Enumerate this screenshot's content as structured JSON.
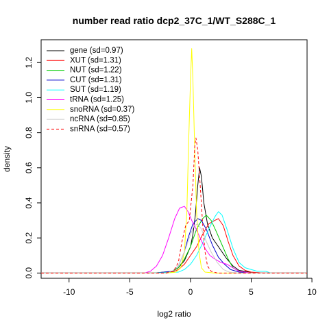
{
  "chart_data": {
    "type": "line",
    "title": "number read ratio dcp2_37C_1/WT_S288C_1",
    "xlabel": "log2 ratio",
    "ylabel": "density",
    "xlim": [
      -12.3,
      9.6
    ],
    "ylim": [
      -0.03,
      1.33
    ],
    "xticks": [
      -10,
      -5,
      0,
      5,
      10
    ],
    "yticks": [
      0.0,
      0.2,
      0.4,
      0.6,
      0.8,
      1.0,
      1.2
    ],
    "grid": false,
    "legend_position": "top-left",
    "series": [
      {
        "name": "gene (sd=0.97)",
        "color": "#000000",
        "dash": false,
        "points": [
          [
            -12.3,
            0
          ],
          [
            -3,
            0
          ],
          [
            -2,
            0.003
          ],
          [
            -1.5,
            0.01
          ],
          [
            -1,
            0.03
          ],
          [
            -0.5,
            0.07
          ],
          [
            0,
            0.15
          ],
          [
            0.2,
            0.22
          ],
          [
            0.4,
            0.33
          ],
          [
            0.6,
            0.5
          ],
          [
            0.75,
            0.6
          ],
          [
            0.9,
            0.55
          ],
          [
            1.1,
            0.4
          ],
          [
            1.4,
            0.28
          ],
          [
            1.8,
            0.2
          ],
          [
            2.2,
            0.16
          ],
          [
            2.6,
            0.12
          ],
          [
            3,
            0.08
          ],
          [
            3.5,
            0.04
          ],
          [
            4,
            0.015
          ],
          [
            5,
            0.004
          ],
          [
            6,
            0
          ],
          [
            9.6,
            0
          ]
        ]
      },
      {
        "name": "XUT (sd=1.31)",
        "color": "#ff0000",
        "dash": false,
        "points": [
          [
            -12.3,
            0
          ],
          [
            -3,
            0
          ],
          [
            -1.5,
            0.005
          ],
          [
            -1,
            0.02
          ],
          [
            -0.5,
            0.05
          ],
          [
            0,
            0.1
          ],
          [
            0.5,
            0.15
          ],
          [
            1,
            0.22
          ],
          [
            1.5,
            0.28
          ],
          [
            2,
            0.3
          ],
          [
            2.3,
            0.31
          ],
          [
            2.7,
            0.27
          ],
          [
            3.1,
            0.18
          ],
          [
            3.5,
            0.1
          ],
          [
            4,
            0.04
          ],
          [
            4.5,
            0.015
          ],
          [
            5,
            0.005
          ],
          [
            6,
            0
          ],
          [
            9.6,
            0
          ]
        ]
      },
      {
        "name": "NUT (sd=1.22)",
        "color": "#00cc00",
        "dash": false,
        "points": [
          [
            -12.3,
            0
          ],
          [
            -3,
            0
          ],
          [
            -1.5,
            0.01
          ],
          [
            -1,
            0.03
          ],
          [
            -0.5,
            0.08
          ],
          [
            0,
            0.15
          ],
          [
            0.5,
            0.25
          ],
          [
            1,
            0.31
          ],
          [
            1.3,
            0.33
          ],
          [
            1.7,
            0.3
          ],
          [
            2.1,
            0.24
          ],
          [
            2.6,
            0.16
          ],
          [
            3.1,
            0.08
          ],
          [
            3.5,
            0.03
          ],
          [
            4,
            0.01
          ],
          [
            5,
            0
          ],
          [
            9.6,
            0
          ]
        ]
      },
      {
        "name": "CUT (sd=1.31)",
        "color": "#0000cc",
        "dash": false,
        "points": [
          [
            -12.3,
            0
          ],
          [
            -3,
            0
          ],
          [
            -1.5,
            0.01
          ],
          [
            -1,
            0.04
          ],
          [
            -0.5,
            0.12
          ],
          [
            -0.2,
            0.2
          ],
          [
            0.2,
            0.28
          ],
          [
            0.6,
            0.31
          ],
          [
            0.9,
            0.3
          ],
          [
            1.3,
            0.25
          ],
          [
            1.8,
            0.16
          ],
          [
            2.3,
            0.09
          ],
          [
            2.8,
            0.05
          ],
          [
            3.3,
            0.02
          ],
          [
            4,
            0.005
          ],
          [
            5,
            0
          ],
          [
            9.6,
            0
          ]
        ]
      },
      {
        "name": "SUT (sd=1.19)",
        "color": "#00ffff",
        "dash": false,
        "points": [
          [
            -12.3,
            0
          ],
          [
            -3,
            0
          ],
          [
            -1,
            0.005
          ],
          [
            -0.5,
            0.02
          ],
          [
            0,
            0.05
          ],
          [
            0.5,
            0.1
          ],
          [
            1,
            0.17
          ],
          [
            1.5,
            0.25
          ],
          [
            2,
            0.32
          ],
          [
            2.3,
            0.35
          ],
          [
            2.6,
            0.33
          ],
          [
            3,
            0.25
          ],
          [
            3.5,
            0.14
          ],
          [
            4,
            0.06
          ],
          [
            4.5,
            0.03
          ],
          [
            5,
            0.02
          ],
          [
            5.5,
            0.01
          ],
          [
            6.2,
            0.01
          ],
          [
            6.6,
            0
          ],
          [
            9.6,
            0
          ]
        ]
      },
      {
        "name": "tRNA (sd=1.25)",
        "color": "#ff00ff",
        "dash": false,
        "points": [
          [
            -12.3,
            0
          ],
          [
            -3.8,
            0
          ],
          [
            -3.3,
            0.01
          ],
          [
            -2.8,
            0.04
          ],
          [
            -2.3,
            0.1
          ],
          [
            -1.8,
            0.2
          ],
          [
            -1.3,
            0.31
          ],
          [
            -0.9,
            0.37
          ],
          [
            -0.5,
            0.38
          ],
          [
            -0.2,
            0.35
          ],
          [
            0.1,
            0.3
          ],
          [
            0.4,
            0.26
          ],
          [
            0.8,
            0.2
          ],
          [
            1.2,
            0.14
          ],
          [
            1.6,
            0.1
          ],
          [
            2,
            0.08
          ],
          [
            2.5,
            0.06
          ],
          [
            3,
            0.05
          ],
          [
            3.5,
            0.03
          ],
          [
            4,
            0.01
          ],
          [
            5,
            0
          ],
          [
            9.6,
            0
          ]
        ]
      },
      {
        "name": "snoRNA (sd=0.37)",
        "color": "#ffff00",
        "dash": false,
        "points": [
          [
            -12.3,
            0
          ],
          [
            -2,
            0
          ],
          [
            -1.2,
            0.005
          ],
          [
            -0.8,
            0.03
          ],
          [
            -0.5,
            0.12
          ],
          [
            -0.3,
            0.35
          ],
          [
            -0.15,
            0.75
          ],
          [
            0,
            1.1
          ],
          [
            0.1,
            1.28
          ],
          [
            0.2,
            1.1
          ],
          [
            0.35,
            0.7
          ],
          [
            0.5,
            0.35
          ],
          [
            0.7,
            0.12
          ],
          [
            0.9,
            0.03
          ],
          [
            1.2,
            0.005
          ],
          [
            2,
            0
          ],
          [
            9.6,
            0
          ]
        ]
      },
      {
        "name": "ncRNA (sd=0.85)",
        "color": "#cccccc",
        "dash": false,
        "points": [
          [
            -12.3,
            0
          ],
          [
            -2,
            0
          ],
          [
            -1.5,
            0.01
          ],
          [
            -1,
            0.04
          ],
          [
            -0.5,
            0.12
          ],
          [
            0,
            0.22
          ],
          [
            0.3,
            0.27
          ],
          [
            0.6,
            0.28
          ],
          [
            0.9,
            0.25
          ],
          [
            1.3,
            0.18
          ],
          [
            1.7,
            0.12
          ],
          [
            2.2,
            0.06
          ],
          [
            2.7,
            0.02
          ],
          [
            3.2,
            0.005
          ],
          [
            4,
            0
          ],
          [
            9.6,
            0
          ]
        ]
      },
      {
        "name": "snRNA (sd=0.57)",
        "color": "#ff0000",
        "dash": true,
        "points": [
          [
            -12.3,
            0
          ],
          [
            -2,
            0
          ],
          [
            -1.4,
            0.01
          ],
          [
            -1,
            0.06
          ],
          [
            -0.7,
            0.18
          ],
          [
            -0.4,
            0.27
          ],
          [
            -0.1,
            0.3
          ],
          [
            0.2,
            0.5
          ],
          [
            0.35,
            0.72
          ],
          [
            0.45,
            0.77
          ],
          [
            0.6,
            0.7
          ],
          [
            0.8,
            0.5
          ],
          [
            1,
            0.28
          ],
          [
            1.2,
            0.12
          ],
          [
            1.4,
            0.04
          ],
          [
            1.7,
            0.01
          ],
          [
            2.2,
            0
          ],
          [
            9.6,
            0
          ]
        ]
      }
    ]
  }
}
